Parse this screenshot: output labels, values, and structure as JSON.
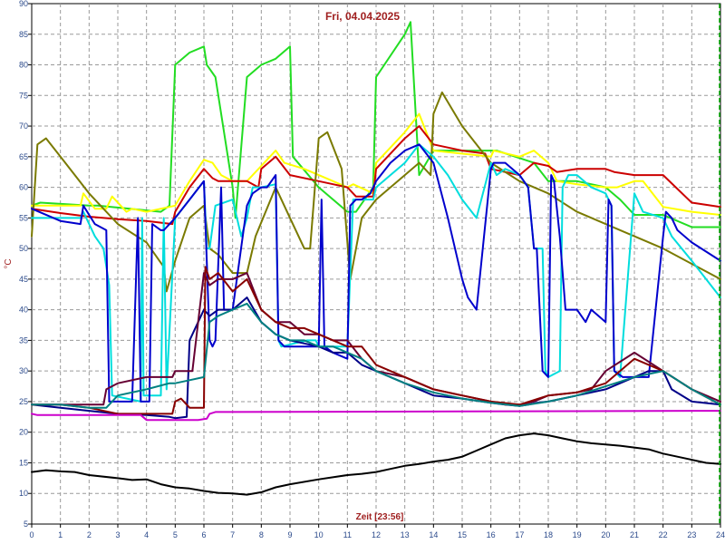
{
  "chart_data": {
    "type": "line",
    "title": "Fri, 04.04.2025",
    "xlabel": "Zeit [23:56]",
    "ylabel": "°C",
    "xlim": [
      0,
      24
    ],
    "ylim": [
      5,
      90
    ],
    "x_ticks": [
      0,
      1,
      2,
      3,
      4,
      5,
      6,
      7,
      8,
      9,
      10,
      11,
      12,
      13,
      14,
      15,
      16,
      17,
      18,
      19,
      20,
      21,
      22,
      23,
      24
    ],
    "y_ticks": [
      5,
      10,
      15,
      20,
      25,
      30,
      35,
      40,
      45,
      50,
      55,
      60,
      65,
      70,
      75,
      80,
      85,
      90
    ],
    "grid": true,
    "legend": "none",
    "current_time_marker": 24,
    "series": [
      {
        "color": "#22dd22",
        "x": [
          0,
          0.3,
          2,
          2.3,
          4.5,
          4.8,
          5,
          5.5,
          6,
          6.1,
          6.4,
          7,
          7.1,
          7.5,
          8,
          8.5,
          9,
          9.1,
          10,
          11,
          11.3,
          11.9,
          12,
          13,
          13.2,
          13.5,
          14,
          16,
          16.2,
          17.5,
          18,
          19,
          20,
          20.5,
          21,
          22,
          23,
          24
        ],
        "y": [
          57,
          57.5,
          57,
          57,
          56,
          57,
          80,
          82,
          83,
          80,
          78,
          60,
          55,
          78,
          80,
          81,
          83,
          65,
          60,
          56,
          56,
          60,
          78,
          85,
          87,
          62,
          66,
          66,
          66,
          64,
          61,
          61,
          60,
          58,
          55.5,
          55.5,
          53.5,
          53.5
        ]
      },
      {
        "color": "#ffff00",
        "x": [
          0,
          1.7,
          1.8,
          2.2,
          2.6,
          2.8,
          3.3,
          3.5,
          4,
          4.8,
          5,
          5.5,
          6,
          6.3,
          6.6,
          7,
          7.5,
          8,
          8.5,
          8.8,
          9.5,
          10,
          10.5,
          11,
          11.2,
          11.9,
          12,
          13,
          13.5,
          14,
          16,
          16.1,
          17,
          17.5,
          18,
          18.3,
          19,
          20,
          20.4,
          21,
          21.3,
          22,
          23,
          24
        ],
        "y": [
          57,
          57,
          59,
          56.5,
          56.5,
          58.5,
          56,
          56.5,
          56,
          56.8,
          57,
          61,
          64.5,
          64,
          62,
          61,
          61,
          63.5,
          66,
          64,
          63,
          62,
          61,
          60,
          60.5,
          59,
          64,
          69,
          72,
          66,
          65,
          66,
          65,
          66,
          64,
          61,
          60.5,
          60,
          60,
          61,
          61,
          56.8,
          56,
          55.5
        ]
      },
      {
        "color": "#cc0000",
        "x": [
          0,
          1,
          2,
          3,
          4,
          4.9,
          5,
          5.5,
          6,
          6.3,
          6.5,
          7,
          7.5,
          7.9,
          8,
          8.5,
          9,
          10,
          10.5,
          11,
          11.3,
          11.9,
          12,
          13,
          13.5,
          14,
          15,
          15.8,
          16,
          17,
          17.5,
          18,
          18.3,
          19,
          20,
          20.3,
          21,
          22,
          23,
          24
        ],
        "y": [
          56.5,
          55.8,
          55.2,
          54.8,
          54.5,
          54,
          56,
          60,
          63,
          61.5,
          61,
          61,
          61,
          60,
          63,
          65,
          62,
          61,
          60.5,
          60,
          58.5,
          58.5,
          63,
          68,
          70,
          67,
          66,
          65.5,
          63,
          62,
          64,
          63.5,
          62.5,
          63,
          63,
          62.5,
          62,
          62,
          57.5,
          56.8
        ]
      },
      {
        "color": "#7a7a00",
        "x": [
          0,
          0.2,
          0.5,
          1,
          2,
          3,
          4,
          4.6,
          4.7,
          5,
          5.5,
          6,
          6.2,
          6.5,
          7,
          7.5,
          7.8,
          8.5,
          9,
          9.5,
          9.7,
          10,
          10.3,
          10.8,
          11.1,
          11.5,
          12,
          13,
          13.5,
          13.9,
          14,
          14.3,
          15,
          16,
          17,
          18,
          19,
          20,
          21,
          22,
          23,
          24
        ],
        "y": [
          52,
          67,
          68,
          65,
          59,
          54,
          51,
          47,
          43,
          48,
          55,
          57,
          50,
          49,
          46,
          46,
          52,
          60,
          55,
          50,
          50,
          68,
          69,
          63,
          45,
          55,
          58,
          62,
          64,
          62,
          72,
          75.5,
          70,
          64,
          61,
          59,
          56,
          54,
          52,
          50,
          47.5,
          45
        ]
      },
      {
        "color": "#00dddd",
        "x": [
          0,
          1.7,
          1.8,
          2.2,
          2.5,
          2.7,
          2.8,
          3.8,
          3.85,
          3.9,
          4.5,
          4.6,
          4.7,
          5,
          5.5,
          6,
          6.1,
          6.2,
          6.4,
          7,
          7.3,
          7.5,
          7.7,
          8,
          8.5,
          8.6,
          8.7,
          9.6,
          9.9,
          10,
          11,
          11.2,
          11.9,
          12,
          12.5,
          13,
          13.5,
          14,
          14.5,
          15,
          15.5,
          16,
          16.2,
          16.5,
          17,
          17.3,
          17.5,
          17.8,
          17.9,
          18,
          18.4,
          18.5,
          18.7,
          19,
          19.5,
          20,
          20.2,
          20.3,
          20.5,
          21,
          21.3,
          22,
          22.3,
          23,
          24
        ],
        "y": [
          55,
          55,
          56,
          52,
          50,
          44,
          26,
          25,
          55,
          26,
          26,
          55,
          27,
          55,
          58,
          61,
          50,
          50,
          57,
          58,
          52,
          55,
          60,
          60,
          60.5,
          35,
          34,
          35,
          35,
          34,
          34,
          58,
          58,
          60,
          62,
          64,
          67,
          65,
          62,
          58,
          55,
          64,
          62,
          63,
          62,
          60,
          50,
          50,
          30,
          29,
          30,
          60,
          62,
          62,
          60,
          59,
          57,
          30,
          29,
          59,
          56,
          55,
          52,
          48,
          42
        ]
      },
      {
        "color": "#0000cc",
        "x": [
          0,
          1,
          1.7,
          1.8,
          2.2,
          2.6,
          2.7,
          3.5,
          3.7,
          3.8,
          4.1,
          4.2,
          4.5,
          4.6,
          5,
          5.5,
          6,
          6.2,
          6.3,
          6.4,
          6.6,
          6.7,
          7,
          7.5,
          7.7,
          8,
          8.2,
          8.5,
          8.6,
          8.8,
          9.5,
          10,
          10.1,
          10.2,
          10.5,
          11,
          11.1,
          11.3,
          11.5,
          11.8,
          12,
          12.5,
          13,
          13.5,
          14,
          14.5,
          15,
          15.2,
          15.5,
          16,
          16.1,
          16.5,
          17,
          17.3,
          17.5,
          17.6,
          17.8,
          18,
          18.1,
          18.2,
          18.4,
          18.6,
          19,
          19.3,
          19.5,
          20,
          20.1,
          20.2,
          20.3,
          20.6,
          21,
          21.5,
          22,
          22.1,
          22.3,
          22.5,
          23,
          24
        ],
        "y": [
          56.5,
          54.5,
          54,
          57,
          54,
          53,
          25,
          25,
          55,
          25,
          25,
          54,
          53,
          53,
          55,
          58,
          61,
          35,
          34,
          35,
          60,
          40,
          40,
          57,
          59,
          60,
          60,
          62,
          35,
          34,
          34,
          34,
          58,
          34,
          33,
          32,
          57,
          58,
          58,
          59,
          61,
          64,
          66,
          67,
          64,
          55,
          45,
          42,
          40,
          63,
          64,
          64,
          62,
          60,
          50,
          50,
          30,
          29,
          62,
          61,
          52,
          40,
          40,
          38,
          40,
          38,
          58,
          57,
          30,
          29,
          29,
          29,
          52,
          56,
          55,
          53,
          51,
          48
        ]
      },
      {
        "color": "#000088",
        "x": [
          0,
          1,
          2,
          3,
          4,
          4.8,
          5,
          5.4,
          5.5,
          6,
          6.2,
          6.5,
          7,
          7.5,
          8,
          8.5,
          9,
          9.5,
          10,
          10.5,
          11,
          11.5,
          12,
          13,
          14,
          15,
          16,
          16.5,
          17,
          17.3,
          17.6,
          18,
          18.5,
          19,
          20,
          20.5,
          21,
          21.5,
          22,
          22.3,
          23,
          24
        ],
        "y": [
          24.5,
          24,
          23.5,
          23,
          22.8,
          22.5,
          22.3,
          22.5,
          35,
          40,
          39,
          40,
          40,
          42,
          38,
          36,
          35,
          34.5,
          34,
          33,
          33,
          31,
          30,
          28,
          26,
          25.5,
          24.8,
          24.5,
          24.3,
          24.5,
          24.8,
          25,
          25.5,
          26,
          27,
          28,
          29,
          30,
          30,
          27,
          25,
          24.5
        ]
      },
      {
        "color": "#660033",
        "x": [
          0,
          1,
          2,
          2.5,
          2.6,
          3,
          4,
          4.9,
          5,
          5.5,
          5.6,
          6,
          6.2,
          6.5,
          7,
          7.5,
          8,
          8.5,
          9,
          9.5,
          10,
          10.5,
          11,
          11.5,
          12,
          13,
          14,
          15,
          16,
          16.5,
          17,
          17.5,
          18,
          19,
          19.5,
          20,
          21,
          22,
          23,
          24
        ],
        "y": [
          24.5,
          24.5,
          24.5,
          24.5,
          27,
          28,
          29,
          29,
          30,
          30,
          30,
          46,
          44,
          45,
          45,
          46,
          40,
          38,
          38,
          36,
          36,
          35,
          35,
          32,
          30,
          29,
          27,
          26,
          25,
          24.5,
          24.5,
          25,
          26,
          26.5,
          27,
          30,
          33,
          30,
          27,
          25
        ]
      },
      {
        "color": "#880000",
        "x": [
          0,
          1,
          2,
          3,
          4,
          4.9,
          5,
          5.2,
          5.5,
          6,
          6.05,
          6.2,
          6.5,
          7,
          7.5,
          8,
          8.5,
          9,
          9.5,
          10,
          10.5,
          11,
          11.5,
          12,
          13,
          14,
          15,
          16,
          17,
          18,
          19,
          20,
          21,
          22,
          23,
          24
        ],
        "y": [
          24.5,
          24.5,
          24,
          23,
          23,
          23,
          25,
          25.5,
          24,
          24,
          47,
          45,
          46,
          43,
          45,
          40,
          38,
          37,
          37,
          36,
          35,
          34,
          34,
          31,
          29,
          27,
          26,
          25,
          24.5,
          26,
          26.5,
          28,
          32,
          30,
          27,
          24.5
        ]
      },
      {
        "color": "#008080",
        "x": [
          0,
          1,
          2,
          2.6,
          3,
          4,
          4.8,
          5,
          5.5,
          6,
          6.2,
          6.5,
          7,
          7.5,
          8,
          8.5,
          9,
          9.5,
          10,
          10.5,
          11,
          11.5,
          12,
          13,
          14,
          15,
          16,
          17,
          18,
          19,
          20,
          21,
          22,
          23,
          24
        ],
        "y": [
          24.5,
          24.5,
          24,
          24,
          26,
          27,
          28,
          28,
          28.5,
          29,
          38,
          39,
          40,
          41,
          38,
          36,
          35,
          35,
          34,
          34,
          33,
          32,
          30,
          28,
          26.5,
          25.5,
          24.8,
          24.3,
          25,
          26,
          27.5,
          29,
          30,
          27,
          24.5
        ]
      },
      {
        "color": "#cc00cc",
        "x": [
          0,
          0.2,
          3.8,
          4,
          5.8,
          6.1,
          6.2,
          6.4,
          24
        ],
        "y": [
          23,
          22.8,
          22.8,
          22,
          22,
          22.2,
          23,
          23.3,
          23.5
        ]
      },
      {
        "color": "#000000",
        "x": [
          0,
          0.5,
          1,
          1.5,
          2,
          3,
          3.5,
          4,
          4.5,
          5,
          5.5,
          6,
          6.5,
          7,
          7.5,
          8,
          8.5,
          9,
          10,
          11,
          11.5,
          12,
          12.5,
          13,
          13.5,
          14,
          14.5,
          15,
          15.5,
          16,
          16.5,
          17,
          17.5,
          18,
          18.5,
          19,
          19.5,
          20,
          20.5,
          21,
          21.5,
          22,
          22.5,
          23,
          23.5,
          24
        ],
        "y": [
          13.5,
          13.8,
          13.6,
          13.5,
          13,
          12.5,
          12.2,
          12.3,
          11.5,
          11,
          10.8,
          10.4,
          10.1,
          10,
          9.8,
          10.2,
          11,
          11.5,
          12.3,
          13,
          13.2,
          13.5,
          14,
          14.5,
          14.8,
          15.2,
          15.5,
          16,
          17,
          18,
          19,
          19.5,
          19.8,
          19.5,
          19,
          18.5,
          18.2,
          18,
          17.8,
          17.5,
          17.2,
          16.5,
          16,
          15.5,
          15,
          14.8
        ]
      }
    ]
  }
}
